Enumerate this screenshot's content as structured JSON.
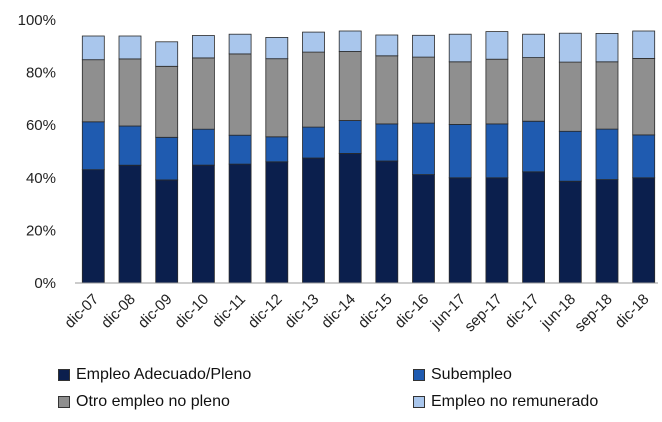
{
  "chart_data": {
    "type": "bar",
    "stacked": true,
    "title": "",
    "xlabel": "",
    "ylabel": "",
    "ylim": [
      0,
      100
    ],
    "y_ticks": [
      "0%",
      "20%",
      "40%",
      "60%",
      "80%",
      "100%"
    ],
    "grid": false,
    "legend_position": "bottom",
    "categories": [
      "dic-07",
      "dic-08",
      "dic-09",
      "dic-10",
      "dic-11",
      "dic-12",
      "dic-13",
      "dic-14",
      "dic-15",
      "dic-16",
      "jun-17",
      "sep-17",
      "dic-17",
      "jun-18",
      "sep-18",
      "dic-18"
    ],
    "series": [
      {
        "name": "Empleo Adecuado/Pleno",
        "color": "#0b1f4d",
        "values": [
          43.1,
          44.8,
          39.2,
          44.8,
          45.2,
          46.1,
          47.5,
          49.3,
          46.4,
          41.2,
          40.0,
          40.0,
          42.3,
          38.7,
          39.3,
          40.0
        ]
      },
      {
        "name": "Subempleo",
        "color": "#1f5bb0",
        "values": [
          18.2,
          14.9,
          16.2,
          13.7,
          11.0,
          9.5,
          11.8,
          12.5,
          14.1,
          19.6,
          20.3,
          20.5,
          19.2,
          19.0,
          19.2,
          16.3
        ]
      },
      {
        "name": "Otro empleo no pleno",
        "color": "#8f8f8f",
        "values": [
          23.6,
          25.5,
          27.0,
          27.1,
          30.9,
          29.7,
          28.5,
          26.2,
          25.9,
          25.1,
          23.8,
          24.6,
          24.2,
          26.3,
          25.6,
          29.1
        ]
      },
      {
        "name": "Empleo no remunerado",
        "color": "#a9c6ec",
        "values": [
          9.0,
          8.7,
          9.3,
          8.5,
          7.5,
          8.1,
          7.6,
          7.8,
          7.9,
          8.3,
          10.5,
          10.5,
          8.9,
          11.0,
          10.8,
          10.4
        ]
      }
    ]
  }
}
